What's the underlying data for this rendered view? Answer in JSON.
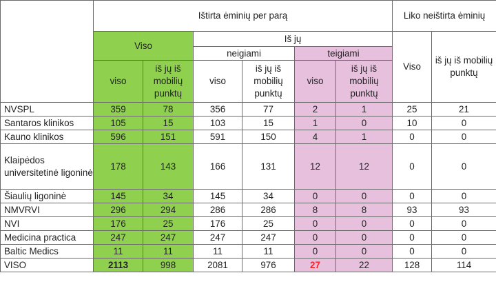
{
  "headers": {
    "tested_per_day": "Ištirta ėminių per parą",
    "remaining_untested": "Liko neištirta ėminių",
    "total_group": "Viso",
    "of_which": "Iš jų",
    "negative": "neigiami",
    "positive": "teigiami",
    "sub_total": "viso",
    "sub_mobile": "iš jų iš mobilių punktų",
    "remaining_total": "Viso",
    "remaining_mobile": "iš jų iš mobilių punktų"
  },
  "rows": [
    {
      "name": "NVSPL",
      "total": "359",
      "total_mobile": "78",
      "neg": "356",
      "neg_mobile": "77",
      "pos": "2",
      "pos_mobile": "1",
      "rem": "25",
      "rem_mobile": "21"
    },
    {
      "name": "Santaros klinikos",
      "total": "105",
      "total_mobile": "15",
      "neg": "103",
      "neg_mobile": "15",
      "pos": "1",
      "pos_mobile": "0",
      "rem": "10",
      "rem_mobile": "0"
    },
    {
      "name": "Kauno klinikos",
      "total": "596",
      "total_mobile": "151",
      "neg": "591",
      "neg_mobile": "150",
      "pos": "4",
      "pos_mobile": "1",
      "rem": "0",
      "rem_mobile": "0"
    },
    {
      "name": "Klaipėdos universitetinė ligoninė",
      "total": "178",
      "total_mobile": "143",
      "neg": "166",
      "neg_mobile": "131",
      "pos": "12",
      "pos_mobile": "12",
      "rem": "0",
      "rem_mobile": "0"
    },
    {
      "name": "Šiaulių ligoninė",
      "total": "145",
      "total_mobile": "34",
      "neg": "145",
      "neg_mobile": "34",
      "pos": "0",
      "pos_mobile": "0",
      "rem": "0",
      "rem_mobile": "0"
    },
    {
      "name": "NMVRVI",
      "total": "296",
      "total_mobile": "294",
      "neg": "286",
      "neg_mobile": "286",
      "pos": "8",
      "pos_mobile": "8",
      "rem": "93",
      "rem_mobile": "93"
    },
    {
      "name": "NVI",
      "total": "176",
      "total_mobile": "25",
      "neg": "176",
      "neg_mobile": "25",
      "pos": "0",
      "pos_mobile": "0",
      "rem": "0",
      "rem_mobile": "0"
    },
    {
      "name": "Medicina practica",
      "total": "247",
      "total_mobile": "247",
      "neg": "247",
      "neg_mobile": "247",
      "pos": "0",
      "pos_mobile": "0",
      "rem": "0",
      "rem_mobile": "0"
    },
    {
      "name": "Baltic Medics",
      "total": "11",
      "total_mobile": "11",
      "neg": "11",
      "neg_mobile": "11",
      "pos": "0",
      "pos_mobile": "0",
      "rem": "0",
      "rem_mobile": "0"
    }
  ],
  "totals": {
    "name": "VISO",
    "total": "2113",
    "total_mobile": "998",
    "neg": "2081",
    "neg_mobile": "976",
    "pos": "27",
    "pos_mobile": "22",
    "rem": "128",
    "rem_mobile": "114"
  },
  "colors": {
    "green": "#8fd14f",
    "pink": "#e6c0dc",
    "red": "#ff2020"
  }
}
